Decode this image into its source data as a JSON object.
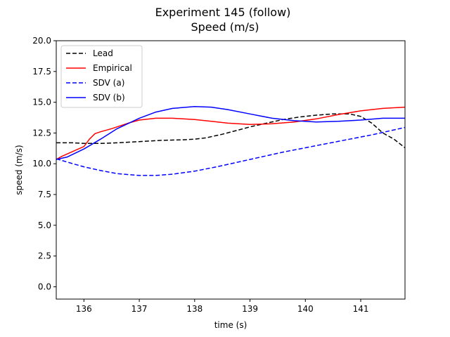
{
  "chart_data": {
    "type": "line",
    "title": "Experiment 145 (follow)",
    "subtitle": "Speed (m/s)",
    "xlabel": "time (s)",
    "ylabel": "speed (m/s)",
    "xlim": [
      135.5,
      141.8
    ],
    "ylim": [
      -1.0,
      20.0
    ],
    "xticks": [
      136,
      137,
      138,
      139,
      140,
      141
    ],
    "xtick_labels": [
      "136",
      "137",
      "138",
      "139",
      "140",
      "141"
    ],
    "yticks": [
      0.0,
      2.5,
      5.0,
      7.5,
      10.0,
      12.5,
      15.0,
      17.5,
      20.0
    ],
    "ytick_labels": [
      "0.0",
      "2.5",
      "5.0",
      "7.5",
      "10.0",
      "12.5",
      "15.0",
      "17.5",
      "20.0"
    ],
    "grid": false,
    "legend_position": "top-left",
    "series": [
      {
        "name": "Lead",
        "color": "#000000",
        "dash": "dashed",
        "x": [
          135.5,
          135.8,
          136.0,
          136.3,
          136.6,
          137.0,
          137.4,
          137.8,
          138.0,
          138.2,
          138.5,
          138.8,
          139.0,
          139.3,
          139.6,
          139.9,
          140.2,
          140.5,
          140.8,
          141.0,
          141.2,
          141.4,
          141.6,
          141.8
        ],
        "y": [
          11.7,
          11.7,
          11.65,
          11.65,
          11.7,
          11.8,
          11.9,
          11.95,
          12.0,
          12.1,
          12.4,
          12.75,
          13.0,
          13.3,
          13.6,
          13.8,
          13.95,
          14.05,
          14.05,
          13.85,
          13.3,
          12.5,
          12.0,
          11.3
        ]
      },
      {
        "name": "Empirical",
        "color": "#ff0000",
        "dash": "solid",
        "x": [
          135.5,
          135.6,
          135.8,
          136.0,
          136.1,
          136.2,
          136.3,
          136.5,
          136.8,
          137.0,
          137.3,
          137.6,
          138.0,
          138.3,
          138.6,
          139.0,
          139.4,
          139.8,
          140.2,
          140.6,
          141.0,
          141.4,
          141.8
        ],
        "y": [
          10.35,
          10.6,
          11.0,
          11.4,
          12.0,
          12.45,
          12.6,
          12.85,
          13.3,
          13.55,
          13.7,
          13.7,
          13.6,
          13.45,
          13.3,
          13.2,
          13.25,
          13.4,
          13.65,
          14.0,
          14.3,
          14.5,
          14.6
        ]
      },
      {
        "name": "SDV (a)",
        "color": "#0000ff",
        "dash": "dashed",
        "x": [
          135.5,
          135.8,
          136.0,
          136.3,
          136.6,
          137.0,
          137.3,
          137.6,
          138.0,
          138.4,
          138.8,
          139.2,
          139.6,
          140.0,
          140.4,
          140.8,
          141.2,
          141.5,
          141.8
        ],
        "y": [
          10.4,
          10.0,
          9.75,
          9.45,
          9.2,
          9.05,
          9.05,
          9.15,
          9.4,
          9.75,
          10.15,
          10.55,
          10.95,
          11.3,
          11.65,
          12.0,
          12.35,
          12.65,
          12.95
        ]
      },
      {
        "name": "SDV (b)",
        "color": "#0000ff",
        "dash": "solid",
        "x": [
          135.5,
          135.7,
          136.0,
          136.3,
          136.6,
          137.0,
          137.3,
          137.6,
          138.0,
          138.3,
          138.6,
          139.0,
          139.4,
          139.8,
          140.2,
          140.6,
          141.0,
          141.4,
          141.8
        ],
        "y": [
          10.35,
          10.55,
          11.2,
          12.0,
          12.85,
          13.7,
          14.2,
          14.5,
          14.65,
          14.6,
          14.4,
          14.05,
          13.7,
          13.5,
          13.4,
          13.45,
          13.55,
          13.7,
          13.7
        ]
      }
    ]
  }
}
